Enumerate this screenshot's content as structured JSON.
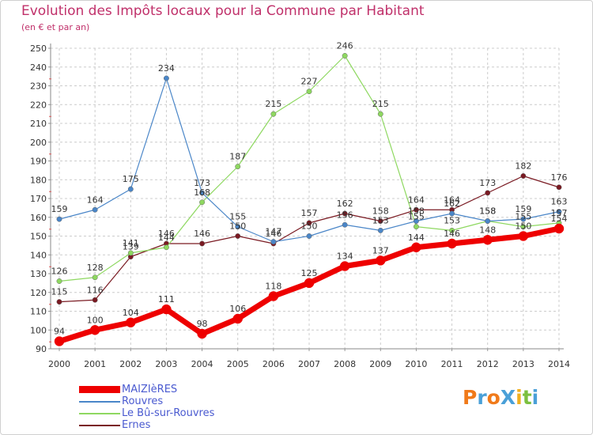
{
  "title": "Evolution des Impôts locaux pour la Commune par Habitant",
  "subtitle": "(en € et par an)",
  "logo": {
    "text": "ProXiti",
    "letters": [
      {
        "ch": "P",
        "color": "#f07a1a"
      },
      {
        "ch": "r",
        "color": "#4aa0d8"
      },
      {
        "ch": "o",
        "color": "#f07a1a"
      },
      {
        "ch": "X",
        "color": "#4aa0d8"
      },
      {
        "ch": "i",
        "color": "#f0b020"
      },
      {
        "ch": "t",
        "color": "#7cc040"
      },
      {
        "ch": "i",
        "color": "#4aa0d8"
      }
    ]
  },
  "chart_data": {
    "type": "line",
    "x": [
      "2000",
      "2001",
      "2002",
      "2003",
      "2004",
      "2005",
      "2006",
      "2007",
      "2008",
      "2009",
      "2010",
      "2011",
      "2012",
      "2013",
      "2014"
    ],
    "ylim": [
      90,
      250
    ],
    "yticks": [
      90,
      100,
      110,
      120,
      130,
      140,
      150,
      160,
      170,
      180,
      190,
      200,
      210,
      220,
      230,
      240,
      250
    ],
    "grid": true,
    "legend_position": "bottom-left",
    "series": [
      {
        "name": "MAIZIèRES",
        "color": "#ee0000",
        "width": 7,
        "values": [
          94,
          100,
          104,
          111,
          98,
          106,
          118,
          125,
          134,
          137,
          144,
          146,
          148,
          150,
          154
        ]
      },
      {
        "name": "Rouvres",
        "color": "#4a86c8",
        "width": 1.2,
        "values": [
          159,
          164,
          175,
          234,
          173,
          155,
          147,
          150,
          156,
          153,
          158,
          162,
          158,
          159,
          163
        ]
      },
      {
        "name": "Le Bû-sur-Rouvres",
        "color": "#8ed860",
        "width": 1.2,
        "values": [
          126,
          128,
          141,
          144,
          168,
          187,
          215,
          227,
          246,
          215,
          155,
          153,
          158,
          155,
          157
        ]
      },
      {
        "name": "Ernes",
        "color": "#7a1a22",
        "width": 1.2,
        "values": [
          115,
          116,
          139,
          146,
          146,
          150,
          146,
          157,
          162,
          158,
          164,
          164,
          173,
          182,
          176
        ]
      }
    ]
  }
}
